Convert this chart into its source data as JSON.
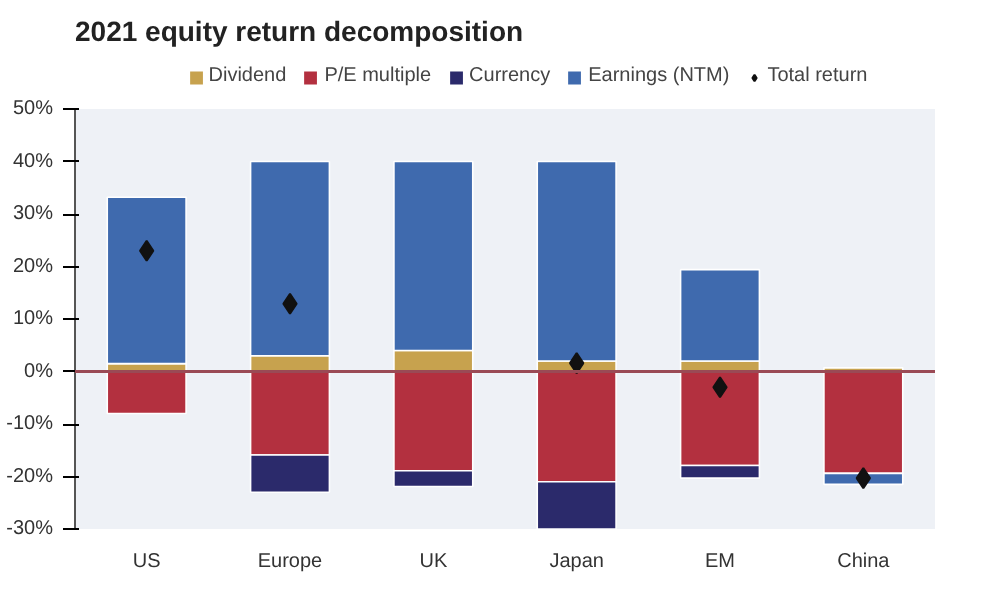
{
  "chart_data": {
    "type": "bar",
    "title": "2021 equity return decomposition",
    "stacked": true,
    "categories": [
      "US",
      "Europe",
      "UK",
      "Japan",
      "EM",
      "China"
    ],
    "series": [
      {
        "name": "Dividend",
        "color": "#c7a24e",
        "values": [
          1.5,
          3,
          4,
          2,
          2,
          0.7
        ]
      },
      {
        "name": "P/E multiple",
        "color": "#b3303f",
        "values": [
          -8,
          -15.9,
          -18.9,
          -21,
          -17.9,
          -19.4
        ]
      },
      {
        "name": "Currency",
        "color": "#2b2a6b",
        "values": [
          null,
          -7.1,
          -3,
          -9,
          -2.4,
          null
        ]
      },
      {
        "name": "Earnings (NTM)",
        "color": "#3f6aae",
        "values": [
          31.7,
          37,
          36,
          38,
          17.4,
          -2.1
        ]
      },
      {
        "name": "Total return",
        "type": "scatter",
        "marker": "diamond",
        "color": "#111111",
        "values": [
          23,
          12.9,
          null,
          1.6,
          -3,
          -20.3
        ]
      }
    ],
    "ylim": [
      -30,
      50
    ],
    "yticks": [
      {
        "value": -30,
        "label": "-30%"
      },
      {
        "value": -20,
        "label": "-20%"
      },
      {
        "value": -10,
        "label": "-10%"
      },
      {
        "value": 0,
        "label": "0%"
      },
      {
        "value": 10,
        "label": "10%"
      },
      {
        "value": 20,
        "label": "20%"
      },
      {
        "value": 30,
        "label": "30%"
      },
      {
        "value": 40,
        "label": "40%"
      },
      {
        "value": 50,
        "label": "50%"
      }
    ],
    "ref_lines": [
      {
        "axis": "y",
        "value": 0,
        "color": "#9a4a55"
      }
    ],
    "legend": "top",
    "grid": false
  }
}
